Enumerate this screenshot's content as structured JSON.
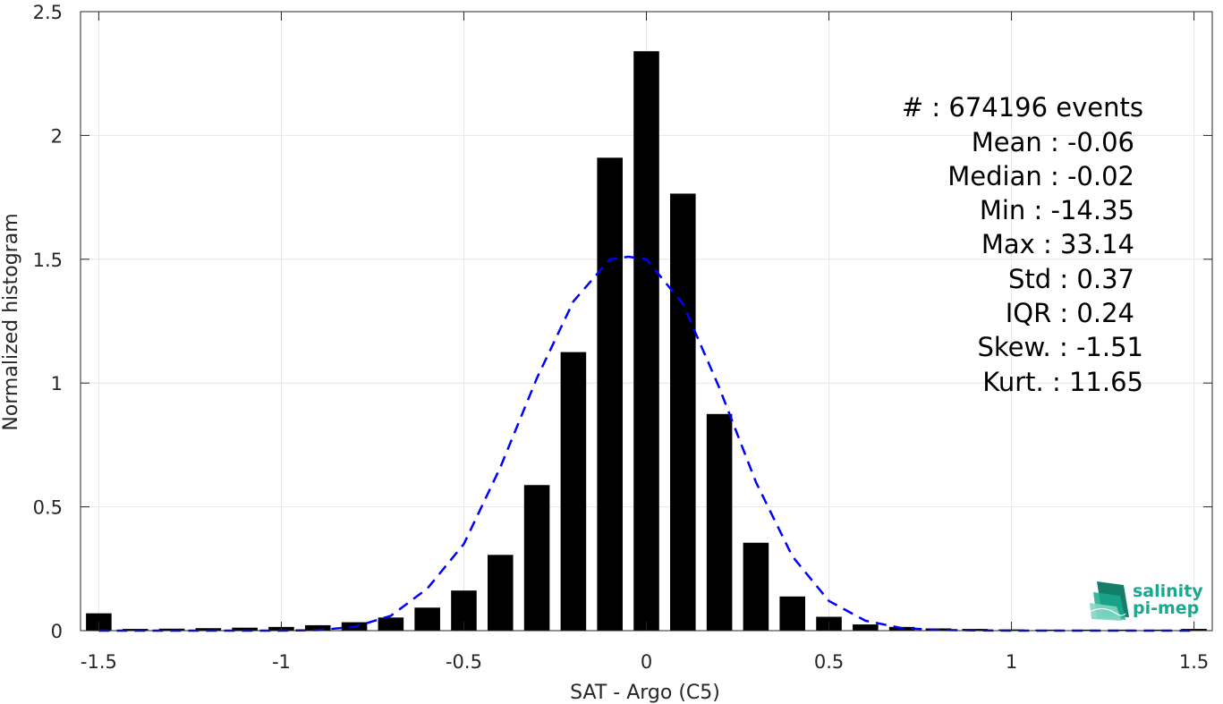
{
  "chart_data": {
    "type": "bar",
    "xlabel": "SAT - Argo (C5)",
    "ylabel": "Normalized histogram",
    "xlim": [
      -1.55,
      1.55
    ],
    "ylim": [
      0,
      2.5
    ],
    "grid": true,
    "x_ticks": [
      -1.5,
      -1,
      -0.5,
      0,
      0.5,
      1,
      1.5
    ],
    "x_tick_labels": [
      "-1.5",
      "-1",
      "-0.5",
      "0",
      "0.5",
      "1",
      "1.5"
    ],
    "y_ticks": [
      0,
      0.5,
      1,
      1.5,
      2,
      2.5
    ],
    "y_tick_labels": [
      "0",
      "0.5",
      "1",
      "1.5",
      "2",
      "2.5"
    ],
    "bar_width": 0.07,
    "bars": {
      "x": [
        -1.5,
        -1.4,
        -1.3,
        -1.2,
        -1.1,
        -1.0,
        -0.9,
        -0.8,
        -0.7,
        -0.6,
        -0.5,
        -0.4,
        -0.3,
        -0.2,
        -0.1,
        0.0,
        0.1,
        0.2,
        0.3,
        0.4,
        0.5,
        0.6,
        0.7,
        0.8,
        0.9,
        1.0,
        1.1,
        1.2,
        1.3,
        1.4,
        1.5
      ],
      "values": [
        0.07,
        0.007,
        0.008,
        0.01,
        0.012,
        0.015,
        0.022,
        0.034,
        0.053,
        0.093,
        0.162,
        0.306,
        0.588,
        1.125,
        1.91,
        2.34,
        1.765,
        0.875,
        0.355,
        0.138,
        0.056,
        0.025,
        0.015,
        0.009,
        0.007,
        0.005,
        0.004,
        0.004,
        0.004,
        0.004,
        0.007
      ],
      "color": "#000000"
    },
    "fit": {
      "style": "dashed",
      "color": "#0000ff",
      "x": [
        -1.5,
        -1.4,
        -1.3,
        -1.2,
        -1.1,
        -1.0,
        -0.9,
        -0.8,
        -0.7,
        -0.6,
        -0.5,
        -0.4,
        -0.3,
        -0.2,
        -0.1,
        -0.05,
        0.0,
        0.1,
        0.2,
        0.3,
        0.4,
        0.5,
        0.6,
        0.7,
        0.8,
        0.9,
        1.0,
        1.1,
        1.2,
        1.3,
        1.4,
        1.5
      ],
      "y": [
        0.0,
        0.0,
        0.0,
        0.0,
        0.0,
        0.0,
        0.002,
        0.015,
        0.06,
        0.17,
        0.35,
        0.66,
        1.02,
        1.33,
        1.5,
        1.51,
        1.5,
        1.32,
        0.98,
        0.6,
        0.3,
        0.12,
        0.04,
        0.01,
        0.003,
        0.001,
        0.0,
        0.0,
        0.0,
        0.0,
        0.0,
        0.0
      ]
    },
    "annotations": [
      "#  : 674196 events",
      "Mean : -0.06",
      "Median : -0.02",
      "Min : -14.35",
      "Max : 33.14",
      "Std : 0.37",
      "IQR : 0.24",
      "Skew. : -1.51",
      "Kurt. : 11.65"
    ]
  },
  "logo": {
    "line1": "salinity",
    "line2": "pi-mep",
    "color": "#1aa98e"
  }
}
